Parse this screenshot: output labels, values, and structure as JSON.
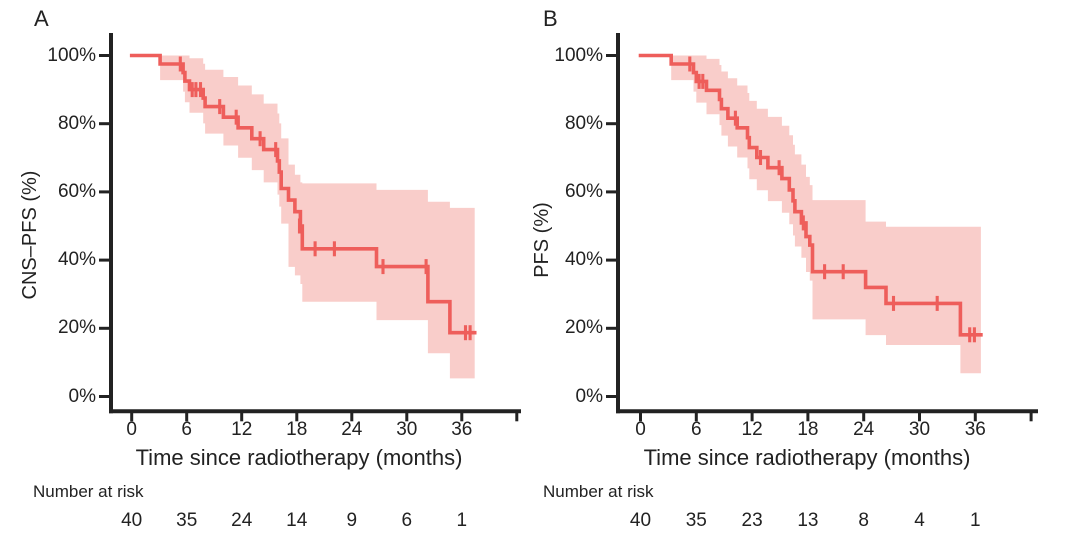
{
  "chart_data": [
    {
      "type": "line",
      "chart_kind": "kaplan-meier-survival",
      "panel_label": "A",
      "ylabel": "CNS–PFS (%)",
      "xlabel": "Time since radiotherapy (months)",
      "xlim": [
        0,
        42
      ],
      "ylim": [
        0,
        100
      ],
      "grid": "off",
      "legend": "none",
      "x_ticks": [
        {
          "v": 0,
          "label": "0"
        },
        {
          "v": 6,
          "label": "6"
        },
        {
          "v": 12,
          "label": "12"
        },
        {
          "v": 18,
          "label": "18"
        },
        {
          "v": 24,
          "label": "24"
        },
        {
          "v": 30,
          "label": "30"
        },
        {
          "v": 36,
          "label": "36"
        },
        {
          "v": 42,
          "label": ""
        }
      ],
      "y_ticks": [
        {
          "v": 0,
          "label": "0%"
        },
        {
          "v": 20,
          "label": "20%"
        },
        {
          "v": 40,
          "label": "40%"
        },
        {
          "v": 60,
          "label": "60%"
        },
        {
          "v": 80,
          "label": "80%"
        },
        {
          "v": 100,
          "label": "100%"
        }
      ],
      "series_color": "#ee5e5b",
      "band_color": "#f9cdca",
      "axis_color": "#222222",
      "steps": [
        [
          0,
          100
        ],
        [
          3.1,
          97.5
        ],
        [
          5.6,
          95
        ],
        [
          5.8,
          92.5
        ],
        [
          6.3,
          90
        ],
        [
          7.8,
          87.5
        ],
        [
          8,
          85
        ],
        [
          10,
          81.9
        ],
        [
          11.6,
          78.8
        ],
        [
          13.1,
          75.6
        ],
        [
          14.4,
          72.4
        ],
        [
          15.9,
          69.1
        ],
        [
          16.1,
          65.8
        ],
        [
          16.3,
          61
        ],
        [
          17.1,
          57.6
        ],
        [
          17.8,
          54.2
        ],
        [
          18.4,
          50
        ],
        [
          18.6,
          43.3
        ],
        [
          26.7,
          38.1
        ],
        [
          32.3,
          27.8
        ],
        [
          34.7,
          18.7
        ]
      ],
      "curve_end": 37.4,
      "censor_marks": [
        [
          5.3,
          97.5
        ],
        [
          6.6,
          90
        ],
        [
          7,
          90
        ],
        [
          7.5,
          90
        ],
        [
          9.6,
          85
        ],
        [
          11.4,
          81.9
        ],
        [
          14,
          75.6
        ],
        [
          15.7,
          72.4
        ],
        [
          18.3,
          50
        ],
        [
          20,
          43.3
        ],
        [
          22.1,
          43.3
        ],
        [
          27.4,
          38.1
        ],
        [
          32.1,
          38.1
        ],
        [
          36.4,
          18.7
        ],
        [
          36.9,
          18.7
        ]
      ],
      "confidence_band": [
        [
          3.1,
          92.8,
          100
        ],
        [
          5.6,
          89.4,
          100
        ],
        [
          5.8,
          86.3,
          100
        ],
        [
          6.3,
          83.2,
          99.2
        ],
        [
          7.8,
          80.1,
          97.6
        ],
        [
          8,
          77.1,
          95.8
        ],
        [
          10,
          73.6,
          93.7
        ],
        [
          11.6,
          70,
          91.2
        ],
        [
          13.1,
          66.4,
          88.6
        ],
        [
          14.4,
          62.8,
          85.9
        ],
        [
          15.9,
          59.2,
          83
        ],
        [
          16.1,
          55.7,
          80.1
        ],
        [
          16.3,
          50.7,
          75.7
        ],
        [
          17.1,
          38,
          68
        ],
        [
          17.8,
          35.5,
          65
        ],
        [
          18.4,
          33,
          62.8
        ],
        [
          18.6,
          27.8,
          62.5
        ],
        [
          26.7,
          22.4,
          60.6
        ],
        [
          32.3,
          12.7,
          57.1
        ],
        [
          34.7,
          5.3,
          55.3
        ]
      ],
      "number_at_risk": {
        "label": "Number at risk",
        "times": [
          0,
          6,
          12,
          18,
          24,
          30,
          36
        ],
        "counts": [
          40,
          35,
          24,
          14,
          9,
          6,
          1
        ]
      }
    },
    {
      "type": "line",
      "chart_kind": "kaplan-meier-survival",
      "panel_label": "B",
      "ylabel": "PFS (%)",
      "xlabel": "Time since radiotherapy (months)",
      "xlim": [
        0,
        42
      ],
      "ylim": [
        0,
        100
      ],
      "grid": "off",
      "legend": "none",
      "x_ticks": [
        {
          "v": 0,
          "label": "0"
        },
        {
          "v": 6,
          "label": "6"
        },
        {
          "v": 12,
          "label": "12"
        },
        {
          "v": 18,
          "label": "18"
        },
        {
          "v": 24,
          "label": "24"
        },
        {
          "v": 30,
          "label": "30"
        },
        {
          "v": 36,
          "label": "36"
        },
        {
          "v": 42,
          "label": ""
        }
      ],
      "y_ticks": [
        {
          "v": 0,
          "label": "0%"
        },
        {
          "v": 20,
          "label": "20%"
        },
        {
          "v": 40,
          "label": "40%"
        },
        {
          "v": 60,
          "label": "60%"
        },
        {
          "v": 80,
          "label": "80%"
        },
        {
          "v": 100,
          "label": "100%"
        }
      ],
      "series_color": "#ee5e5b",
      "band_color": "#f9cdca",
      "axis_color": "#222222",
      "steps": [
        [
          0,
          100
        ],
        [
          3.3,
          97.5
        ],
        [
          5.7,
          95
        ],
        [
          6,
          92.4
        ],
        [
          7.1,
          89.8
        ],
        [
          8.5,
          87.1
        ],
        [
          8.7,
          84.4
        ],
        [
          9.4,
          81.6
        ],
        [
          10.4,
          78.8
        ],
        [
          11.5,
          75.9
        ],
        [
          11.7,
          73
        ],
        [
          12.5,
          70.1
        ],
        [
          13.7,
          67.1
        ],
        [
          15.2,
          63.9
        ],
        [
          16,
          60.6
        ],
        [
          16.4,
          57.4
        ],
        [
          16.6,
          54.2
        ],
        [
          17.3,
          50.9
        ],
        [
          17.8,
          46.9
        ],
        [
          18.2,
          44.4
        ],
        [
          18.5,
          36.6
        ],
        [
          24.2,
          32
        ],
        [
          26.4,
          27.3
        ],
        [
          34.4,
          18.1
        ]
      ],
      "curve_end": 36.6,
      "censor_marks": [
        [
          5.3,
          97.5
        ],
        [
          6.3,
          92.4
        ],
        [
          6.7,
          92.4
        ],
        [
          10.2,
          81.6
        ],
        [
          12.9,
          70.1
        ],
        [
          14.9,
          67.1
        ],
        [
          17.5,
          50.9
        ],
        [
          19.8,
          36.6
        ],
        [
          21.8,
          36.6
        ],
        [
          27.2,
          27.3
        ],
        [
          31.9,
          27.3
        ],
        [
          35.4,
          18.1
        ],
        [
          35.9,
          18.1
        ]
      ],
      "confidence_band": [
        [
          3.3,
          92.8,
          100
        ],
        [
          5.7,
          89.4,
          100
        ],
        [
          6,
          86.2,
          100
        ],
        [
          7.1,
          82.8,
          99
        ],
        [
          8.5,
          79.6,
          97.2
        ],
        [
          8.7,
          76.5,
          95.3
        ],
        [
          9.4,
          73.3,
          93.3
        ],
        [
          10.4,
          70.1,
          91.2
        ],
        [
          11.5,
          66.9,
          89
        ],
        [
          11.7,
          63.7,
          86.7
        ],
        [
          12.5,
          60.5,
          84.4
        ],
        [
          13.7,
          57.3,
          82
        ],
        [
          15.2,
          53.9,
          79.4
        ],
        [
          16,
          50.5,
          76.6
        ],
        [
          16.4,
          47.2,
          73.8
        ],
        [
          16.6,
          44,
          71
        ],
        [
          17.3,
          40.7,
          68
        ],
        [
          17.8,
          36.5,
          64.4
        ],
        [
          18.2,
          34,
          62
        ],
        [
          18.5,
          22.6,
          57.6
        ],
        [
          24.2,
          18,
          51.3
        ],
        [
          26.4,
          15.1,
          49.8
        ],
        [
          34.4,
          6.8,
          49.8
        ]
      ],
      "number_at_risk": {
        "label": "Number at risk",
        "times": [
          0,
          6,
          12,
          18,
          24,
          30,
          36
        ],
        "counts": [
          40,
          35,
          23,
          13,
          8,
          4,
          1
        ]
      }
    }
  ]
}
